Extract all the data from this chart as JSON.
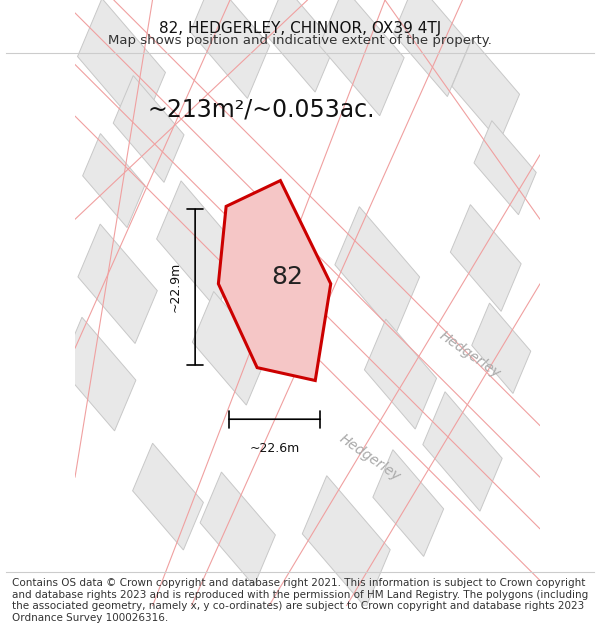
{
  "title_line1": "82, HEDGERLEY, CHINNOR, OX39 4TJ",
  "title_line2": "Map shows position and indicative extent of the property.",
  "area_label": "~213m²/~0.053ac.",
  "property_number": "82",
  "dim_height": "~22.9m",
  "dim_width": "~22.6m",
  "footer_text": "Contains OS data © Crown copyright and database right 2021. This information is subject to Crown copyright and database rights 2023 and is reproduced with the permission of HM Land Registry. The polygons (including the associated geometry, namely x, y co-ordinates) are subject to Crown copyright and database rights 2023 Ordnance Survey 100026316.",
  "bg_color": "#f5f5f5",
  "map_bg": "#f0f0f0",
  "plot_color": "#cc0000",
  "plot_fill": "#f5c6c6",
  "road_label1": "Hedgerley",
  "road_label2": "Hedgerley",
  "title_fontsize": 11,
  "subtitle_fontsize": 9.5,
  "area_fontsize": 17,
  "footer_fontsize": 7.5
}
